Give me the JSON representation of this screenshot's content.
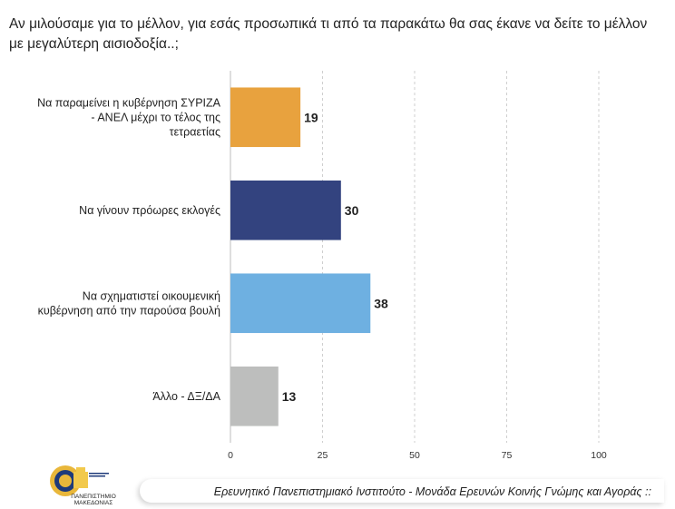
{
  "title": "Αν μιλούσαμε για το μέλλον, για εσάς προσωπικά τι από τα παρακάτω θα σας έκανε να δείτε το μέλλον με μεγαλύτερη αισιοδοξία..;",
  "chart_data": {
    "type": "bar",
    "orientation": "horizontal",
    "title": "Αν μιλούσαμε για το μέλλον, για εσάς προσωπικά τι από τα παρακάτω θα σας έκανε να δείτε το μέλλον με μεγαλύτερη αισιοδοξία..;",
    "categories": [
      [
        "Να παραμείνει η κυβέρνηση ΣΥΡΙΖΑ",
        "- ΑΝΕΛ μέχρι το τέλος της",
        "τετραετίας"
      ],
      [
        "Να γίνουν πρόωρες εκλογές"
      ],
      [
        "Να σχηματιστεί οικουμενική",
        "κυβέρνηση από την παρούσα βουλή"
      ],
      [
        "Άλλο - ΔΞ/ΔΑ"
      ]
    ],
    "values": [
      19,
      30,
      38,
      13
    ],
    "colors": [
      "#E8A23E",
      "#33437F",
      "#6EB0E1",
      "#BDBEBD"
    ],
    "xlim": [
      0,
      100
    ],
    "xticks": [
      0,
      25,
      50,
      75,
      100
    ],
    "grid": true,
    "xlabel": "",
    "ylabel": ""
  },
  "logo": {
    "label_line1": "ΠΑΝΕΠΙΣΤΗΜΙΟ",
    "label_line2": "ΜΑΚΕΔΟΝΙΑΣ"
  },
  "footer": {
    "text": "Ερευνητικό Πανεπιστημιακό Ινστιτούτο - Μονάδα Ερευνών Κοινής Γνώμης και Αγοράς ::"
  }
}
